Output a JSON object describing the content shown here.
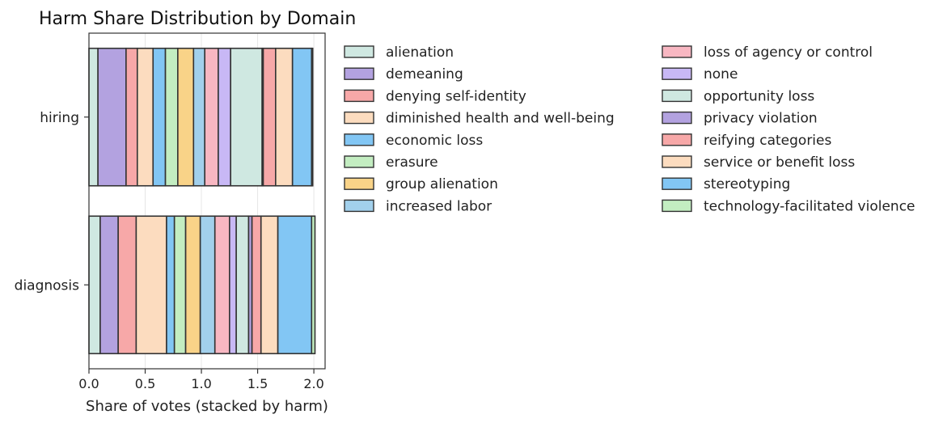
{
  "chart_data": {
    "type": "bar",
    "orientation": "horizontal",
    "stacked": true,
    "title": "Harm Share Distribution by Domain",
    "xlabel": "Share of votes (stacked by harm)",
    "ylabel": "",
    "xlim": [
      0,
      2.1
    ],
    "xticks": [
      "0.0",
      "0.5",
      "1.0",
      "1.5",
      "2.0"
    ],
    "xtick_values": [
      0,
      0.5,
      1.0,
      1.5,
      2.0
    ],
    "grid": "vertical",
    "legend_position": "right",
    "categories": [
      "hiring",
      "diagnosis"
    ],
    "series": [
      {
        "name": "alienation",
        "color": "#cfe8e1",
        "values": [
          0.08,
          0.1
        ]
      },
      {
        "name": "demeaning",
        "color": "#b3a2e0",
        "values": [
          0.25,
          0.16
        ]
      },
      {
        "name": "denying self-identity",
        "color": "#f7a8a8",
        "values": [
          0.1,
          0.16
        ]
      },
      {
        "name": "diminished health and well-being",
        "color": "#fcdcbf",
        "values": [
          0.14,
          0.27
        ]
      },
      {
        "name": "economic loss",
        "color": "#82c6f4",
        "values": [
          0.11,
          0.07
        ]
      },
      {
        "name": "erasure",
        "color": "#c3edc1",
        "values": [
          0.11,
          0.1
        ]
      },
      {
        "name": "group alienation",
        "color": "#f9d388",
        "values": [
          0.14,
          0.13
        ]
      },
      {
        "name": "increased labor",
        "color": "#a2d0ec",
        "values": [
          0.1,
          0.13
        ]
      },
      {
        "name": "loss of agency or control",
        "color": "#f8b7c2",
        "values": [
          0.12,
          0.13
        ]
      },
      {
        "name": "none",
        "color": "#c8b8f5",
        "values": [
          0.11,
          0.06
        ]
      },
      {
        "name": "opportunity loss",
        "color": "#cfe8e1",
        "values": [
          0.28,
          0.11
        ]
      },
      {
        "name": "privacy violation",
        "color": "#b3a2e0",
        "values": [
          0.01,
          0.03
        ]
      },
      {
        "name": "reifying categories",
        "color": "#f7a8a8",
        "values": [
          0.11,
          0.08
        ]
      },
      {
        "name": "service or benefit loss",
        "color": "#fcdcbf",
        "values": [
          0.15,
          0.15
        ]
      },
      {
        "name": "stereotyping",
        "color": "#82c6f4",
        "values": [
          0.17,
          0.3
        ]
      },
      {
        "name": "technology-facilitated violence",
        "color": "#c3edc1",
        "values": [
          0.01,
          0.03
        ]
      }
    ]
  }
}
